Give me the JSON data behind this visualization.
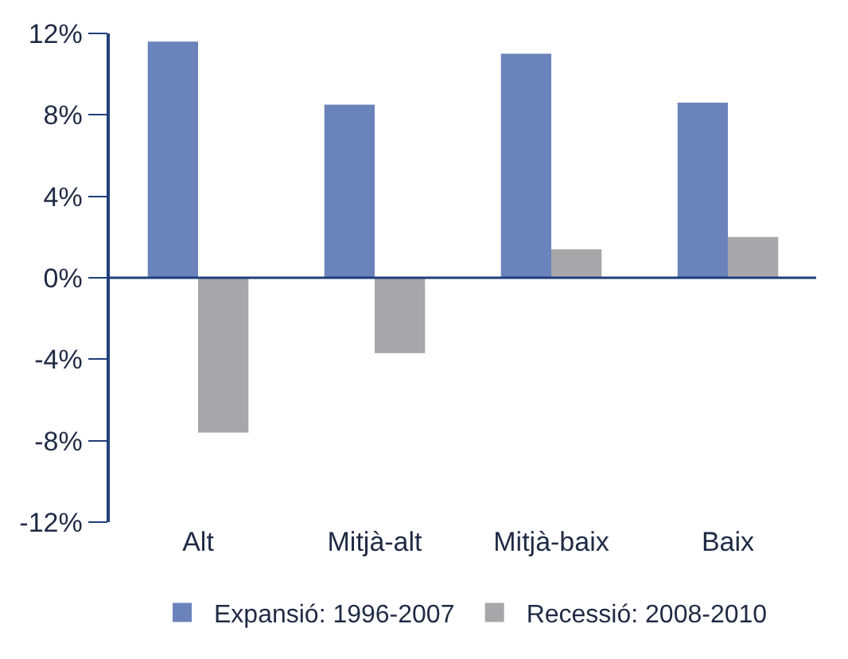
{
  "chart_data": {
    "type": "bar",
    "categories": [
      "Alt",
      "Mitjà-alt",
      "Mitjà-baix",
      "Baix"
    ],
    "series": [
      {
        "name": "Expansió: 1996-2007",
        "color": "#6b83bb",
        "values": [
          11.6,
          8.5,
          11.0,
          8.6
        ]
      },
      {
        "name": "Recessió: 2008-2010",
        "color": "#a7a7a9",
        "values": [
          -7.6,
          -3.7,
          1.4,
          2.0
        ]
      }
    ],
    "ylim": [
      -12,
      12
    ],
    "yticks": [
      {
        "value": -12,
        "label": "-12%"
      },
      {
        "value": -8,
        "label": "-8%"
      },
      {
        "value": -4,
        "label": "-4%"
      },
      {
        "value": 0,
        "label": "0%"
      },
      {
        "value": 4,
        "label": "4%"
      },
      {
        "value": 8,
        "label": "8%"
      },
      {
        "value": 12,
        "label": "12%"
      }
    ],
    "ref_lines": [
      {
        "axis": "y",
        "value": 0,
        "color": "#1f3f7a"
      }
    ],
    "legend": "bottom"
  }
}
